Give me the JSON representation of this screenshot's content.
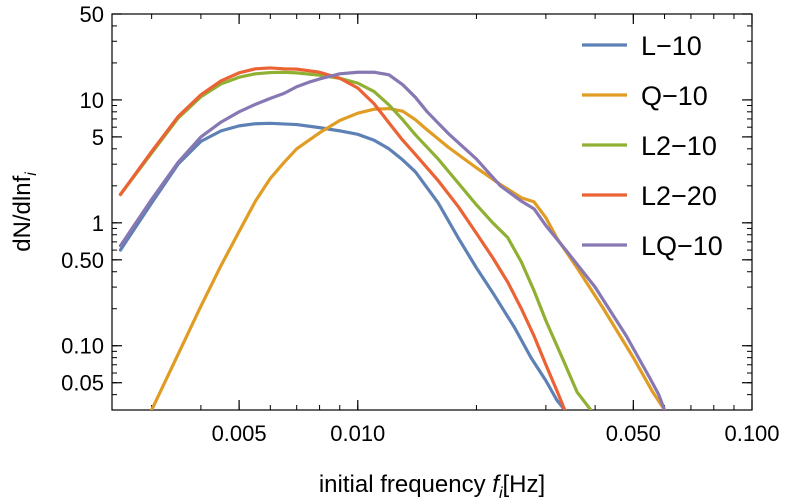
{
  "chart_data": {
    "type": "line",
    "xlabel": "initial frequency",
    "xlabel_symbol": "f",
    "xlabel_subscript": "i",
    "xlabel_unit": "[Hz]",
    "ylabel": "dN/dlnf",
    "ylabel_subscript": "i",
    "x_scale": "log",
    "y_scale": "log",
    "xlim": [
      0.00238,
      0.1
    ],
    "ylim": [
      0.03,
      50
    ],
    "x_ticks": [
      {
        "value": 0.005,
        "label": "0.005"
      },
      {
        "value": 0.01,
        "label": "0.010"
      },
      {
        "value": 0.05,
        "label": "0.050"
      },
      {
        "value": 0.1,
        "label": "0.100"
      }
    ],
    "y_ticks": [
      {
        "value": 0.05,
        "label": "0.05"
      },
      {
        "value": 0.1,
        "label": "0.10"
      },
      {
        "value": 0.5,
        "label": "0.50"
      },
      {
        "value": 1,
        "label": "1"
      },
      {
        "value": 5,
        "label": "5"
      },
      {
        "value": 10,
        "label": "10"
      },
      {
        "value": 50,
        "label": "50"
      }
    ],
    "legend_position": "top-right",
    "grid": false,
    "series": [
      {
        "name": "L−10",
        "color": "#5e81b5",
        "points": [
          [
            0.0025,
            0.6
          ],
          [
            0.003,
            1.45
          ],
          [
            0.0035,
            3.0
          ],
          [
            0.004,
            4.6
          ],
          [
            0.0045,
            5.6
          ],
          [
            0.005,
            6.15
          ],
          [
            0.0055,
            6.4
          ],
          [
            0.006,
            6.45
          ],
          [
            0.007,
            6.3
          ],
          [
            0.008,
            5.95
          ],
          [
            0.009,
            5.6
          ],
          [
            0.01,
            5.25
          ],
          [
            0.011,
            4.7
          ],
          [
            0.012,
            4.0
          ],
          [
            0.013,
            3.25
          ],
          [
            0.014,
            2.6
          ],
          [
            0.016,
            1.45
          ],
          [
            0.018,
            0.75
          ],
          [
            0.02,
            0.43
          ],
          [
            0.022,
            0.27
          ],
          [
            0.025,
            0.14
          ],
          [
            0.0275,
            0.08
          ],
          [
            0.03,
            0.052
          ],
          [
            0.032,
            0.036
          ],
          [
            0.0335,
            0.03
          ]
        ]
      },
      {
        "name": "Q−10",
        "color": "#e19c24",
        "points": [
          [
            0.003,
            0.03
          ],
          [
            0.0035,
            0.085
          ],
          [
            0.004,
            0.21
          ],
          [
            0.0045,
            0.45
          ],
          [
            0.005,
            0.85
          ],
          [
            0.0055,
            1.5
          ],
          [
            0.006,
            2.3
          ],
          [
            0.0065,
            3.1
          ],
          [
            0.007,
            4.0
          ],
          [
            0.008,
            5.4
          ],
          [
            0.009,
            6.8
          ],
          [
            0.01,
            7.8
          ],
          [
            0.011,
            8.4
          ],
          [
            0.012,
            8.5
          ],
          [
            0.013,
            8.1
          ],
          [
            0.014,
            6.9
          ],
          [
            0.015,
            5.7
          ],
          [
            0.017,
            4.1
          ],
          [
            0.02,
            2.8
          ],
          [
            0.023,
            2.05
          ],
          [
            0.026,
            1.6
          ],
          [
            0.028,
            1.48
          ],
          [
            0.03,
            1.1
          ],
          [
            0.032,
            0.75
          ],
          [
            0.036,
            0.43
          ],
          [
            0.042,
            0.2
          ],
          [
            0.05,
            0.08
          ],
          [
            0.056,
            0.042
          ],
          [
            0.06,
            0.03
          ]
        ]
      },
      {
        "name": "L2−10",
        "color": "#8fb032",
        "points": [
          [
            0.0025,
            1.7
          ],
          [
            0.003,
            3.7
          ],
          [
            0.0035,
            7.1
          ],
          [
            0.004,
            10.6
          ],
          [
            0.0045,
            13.5
          ],
          [
            0.005,
            15.3
          ],
          [
            0.0055,
            16.3
          ],
          [
            0.006,
            16.7
          ],
          [
            0.0065,
            16.8
          ],
          [
            0.007,
            16.6
          ],
          [
            0.008,
            15.9
          ],
          [
            0.009,
            15.0
          ],
          [
            0.01,
            13.7
          ],
          [
            0.011,
            11.7
          ],
          [
            0.012,
            9.1
          ],
          [
            0.013,
            6.9
          ],
          [
            0.014,
            5.2
          ],
          [
            0.016,
            3.3
          ],
          [
            0.018,
            2.1
          ],
          [
            0.02,
            1.4
          ],
          [
            0.022,
            1.0
          ],
          [
            0.024,
            0.76
          ],
          [
            0.026,
            0.48
          ],
          [
            0.028,
            0.28
          ],
          [
            0.03,
            0.16
          ],
          [
            0.033,
            0.08
          ],
          [
            0.036,
            0.042
          ],
          [
            0.039,
            0.03
          ]
        ]
      },
      {
        "name": "L2−20",
        "color": "#eb6235",
        "points": [
          [
            0.0025,
            1.7
          ],
          [
            0.003,
            3.8
          ],
          [
            0.0035,
            7.3
          ],
          [
            0.004,
            11.0
          ],
          [
            0.0045,
            14.3
          ],
          [
            0.005,
            16.6
          ],
          [
            0.0055,
            17.9
          ],
          [
            0.006,
            18.2
          ],
          [
            0.0065,
            17.9
          ],
          [
            0.007,
            17.8
          ],
          [
            0.008,
            16.8
          ],
          [
            0.009,
            15.0
          ],
          [
            0.01,
            12.5
          ],
          [
            0.011,
            9.3
          ],
          [
            0.012,
            6.5
          ],
          [
            0.013,
            4.7
          ],
          [
            0.014,
            3.6
          ],
          [
            0.016,
            2.2
          ],
          [
            0.018,
            1.35
          ],
          [
            0.02,
            0.82
          ],
          [
            0.022,
            0.52
          ],
          [
            0.024,
            0.33
          ],
          [
            0.026,
            0.2
          ],
          [
            0.028,
            0.12
          ],
          [
            0.03,
            0.07
          ],
          [
            0.032,
            0.043
          ],
          [
            0.0335,
            0.03
          ]
        ]
      },
      {
        "name": "LQ−10",
        "color": "#8778b3",
        "points": [
          [
            0.0025,
            0.65
          ],
          [
            0.003,
            1.55
          ],
          [
            0.0035,
            3.1
          ],
          [
            0.004,
            5.0
          ],
          [
            0.0045,
            6.6
          ],
          [
            0.005,
            8.0
          ],
          [
            0.0055,
            9.2
          ],
          [
            0.006,
            10.3
          ],
          [
            0.0065,
            11.3
          ],
          [
            0.007,
            12.8
          ],
          [
            0.0075,
            13.9
          ],
          [
            0.008,
            14.8
          ],
          [
            0.009,
            16.3
          ],
          [
            0.01,
            16.8
          ],
          [
            0.011,
            16.8
          ],
          [
            0.012,
            16.0
          ],
          [
            0.013,
            13.3
          ],
          [
            0.014,
            10.5
          ],
          [
            0.015,
            8.0
          ],
          [
            0.017,
            5.3
          ],
          [
            0.02,
            3.3
          ],
          [
            0.023,
            2.0
          ],
          [
            0.026,
            1.5
          ],
          [
            0.028,
            1.3
          ],
          [
            0.03,
            0.95
          ],
          [
            0.034,
            0.58
          ],
          [
            0.04,
            0.3
          ],
          [
            0.048,
            0.12
          ],
          [
            0.055,
            0.055
          ],
          [
            0.058,
            0.04
          ],
          [
            0.06,
            0.03
          ]
        ]
      }
    ]
  }
}
